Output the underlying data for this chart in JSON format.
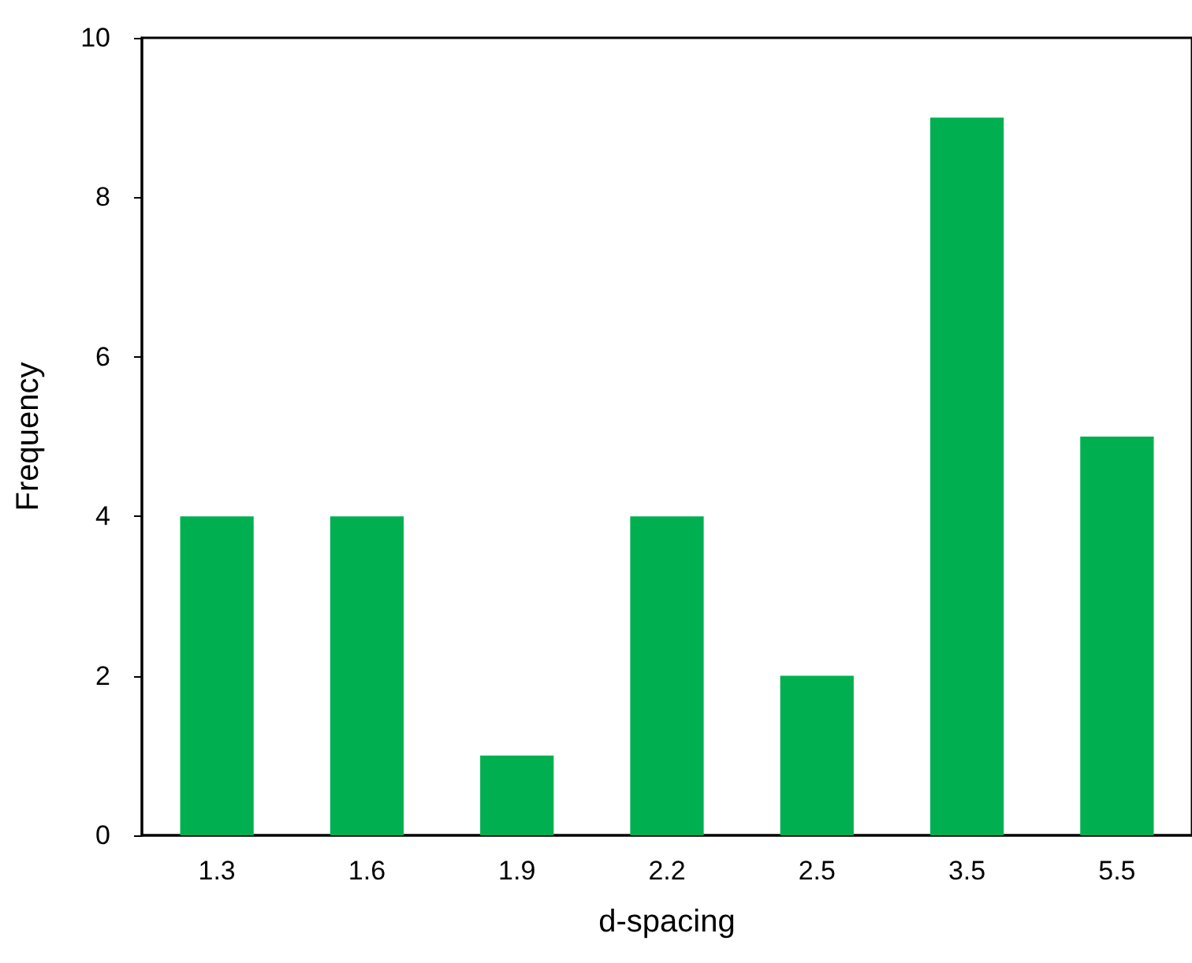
{
  "chart_data": {
    "type": "bar",
    "xlabel": "d-spacing",
    "ylabel": "Frequency",
    "categories": [
      "1.3",
      "1.6",
      "1.9",
      "2.2",
      "2.5",
      "3.5",
      "5.5"
    ],
    "values": [
      4,
      4,
      1,
      4,
      2,
      9,
      5
    ],
    "color": "#00b050",
    "ylim": [
      0,
      10
    ],
    "yticks": [
      0,
      2,
      4,
      6,
      8,
      10
    ],
    "grid": false
  }
}
